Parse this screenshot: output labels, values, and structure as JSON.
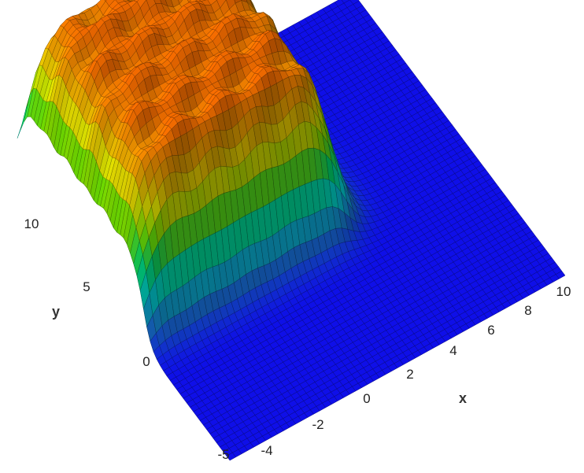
{
  "chart_data": {
    "type": "surface3d",
    "xlabel": "x",
    "ylabel": "y",
    "x_ticks": [
      "-4",
      "-2",
      "0",
      "2",
      "4",
      "6",
      "8",
      "10"
    ],
    "y_ticks": [
      "-5",
      "0",
      "5",
      "10"
    ],
    "xlim": [
      -5,
      10
    ],
    "ylim": [
      -5,
      12
    ],
    "zlim": [
      0,
      1
    ],
    "colorscale": [
      "#1010ff",
      "#1e90ff",
      "#00ffff",
      "#00ff80",
      "#80ff00",
      "#ffff00",
      "#ffb000",
      "#ff7000"
    ],
    "surface": {
      "description": "plateau of height ~1 over x in [-5,4], y in [2,12] with rippled top, zero elsewhere",
      "plateau_x_range": [
        -5,
        4
      ],
      "plateau_y_range": [
        2,
        12
      ],
      "plateau_height": 1.0
    }
  }
}
